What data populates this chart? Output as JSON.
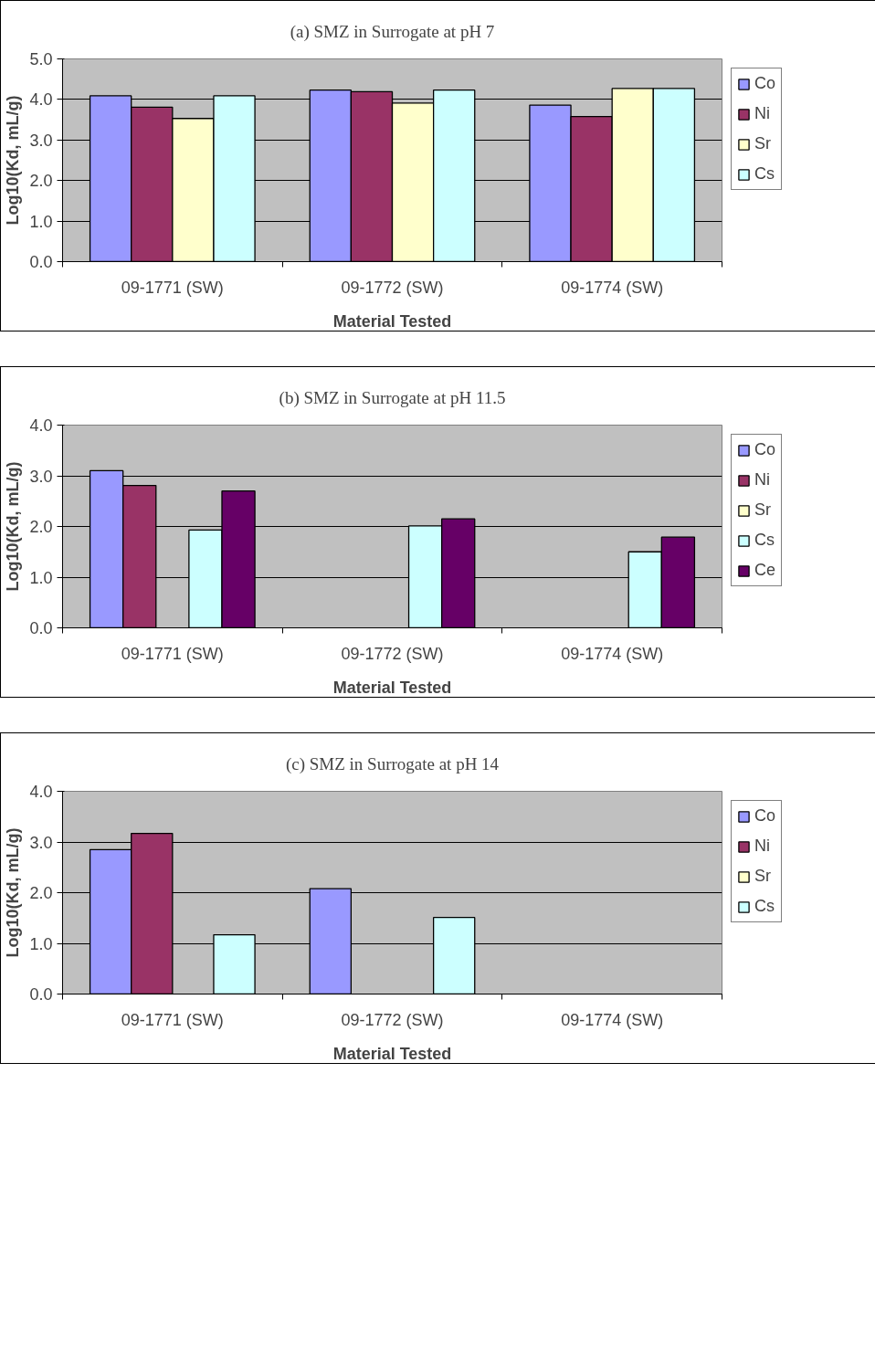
{
  "chart_data": [
    {
      "type": "bar",
      "title": "(a) SMZ in Surrogate at pH 7",
      "xlabel": "Material Tested",
      "ylabel": "Log10(Kd, mL/g)",
      "categories": [
        "09-1771 (SW)",
        "09-1772 (SW)",
        "09-1774 (SW)"
      ],
      "ylim": [
        0,
        5
      ],
      "yticks": [
        {
          "value": 0,
          "label": "0.0"
        },
        {
          "value": 1,
          "label": "1.0"
        },
        {
          "value": 2,
          "label": "2.0"
        },
        {
          "value": 3,
          "label": "3.0"
        },
        {
          "value": 4,
          "label": "4.0"
        },
        {
          "value": 5,
          "label": "5.0"
        }
      ],
      "grid": "y",
      "legend": "right",
      "series": [
        {
          "name": "Co",
          "color": "#9999ff",
          "values": [
            4.09,
            4.23,
            3.86
          ]
        },
        {
          "name": "Ni",
          "color": "#993366",
          "values": [
            3.81,
            4.19,
            3.58
          ]
        },
        {
          "name": "Sr",
          "color": "#ffffcc",
          "values": [
            3.53,
            3.91,
            4.27
          ]
        },
        {
          "name": "Cs",
          "color": "#ccffff",
          "values": [
            4.09,
            4.23,
            4.27
          ]
        }
      ]
    },
    {
      "type": "bar",
      "title": "(b) SMZ in Surrogate at pH 11.5",
      "xlabel": "Material Tested",
      "ylabel": "Log10(Kd, mL/g)",
      "categories": [
        "09-1771 (SW)",
        "09-1772 (SW)",
        "09-1774 (SW)"
      ],
      "ylim": [
        0,
        4
      ],
      "yticks": [
        {
          "value": 0,
          "label": "0.0"
        },
        {
          "value": 1,
          "label": "1.0"
        },
        {
          "value": 2,
          "label": "2.0"
        },
        {
          "value": 3,
          "label": "3.0"
        },
        {
          "value": 4,
          "label": "4.0"
        }
      ],
      "grid": "y",
      "legend": "right",
      "series": [
        {
          "name": "Co",
          "color": "#9999ff",
          "values": [
            3.1,
            null,
            null
          ]
        },
        {
          "name": "Ni",
          "color": "#993366",
          "values": [
            2.81,
            null,
            null
          ]
        },
        {
          "name": "Sr",
          "color": "#ffffcc",
          "values": [
            null,
            null,
            null
          ]
        },
        {
          "name": "Cs",
          "color": "#ccffff",
          "values": [
            1.93,
            2.01,
            1.5
          ]
        },
        {
          "name": "Ce",
          "color": "#660066",
          "values": [
            2.7,
            2.15,
            1.79
          ]
        }
      ]
    },
    {
      "type": "bar",
      "title": "(c) SMZ in Surrogate at pH 14",
      "xlabel": "Material Tested",
      "ylabel": "Log10(Kd, mL/g)",
      "categories": [
        "09-1771 (SW)",
        "09-1772 (SW)",
        "09-1774 (SW)"
      ],
      "ylim": [
        0,
        4
      ],
      "yticks": [
        {
          "value": 0,
          "label": "0.0"
        },
        {
          "value": 1,
          "label": "1.0"
        },
        {
          "value": 2,
          "label": "2.0"
        },
        {
          "value": 3,
          "label": "3.0"
        },
        {
          "value": 4,
          "label": "4.0"
        }
      ],
      "grid": "y",
      "legend": "right",
      "series": [
        {
          "name": "Co",
          "color": "#9999ff",
          "values": [
            2.85,
            2.08,
            null
          ]
        },
        {
          "name": "Ni",
          "color": "#993366",
          "values": [
            3.17,
            null,
            null
          ]
        },
        {
          "name": "Sr",
          "color": "#ffffcc",
          "values": [
            null,
            null,
            null
          ]
        },
        {
          "name": "Cs",
          "color": "#ccffff",
          "values": [
            1.17,
            1.51,
            null
          ]
        }
      ]
    }
  ]
}
